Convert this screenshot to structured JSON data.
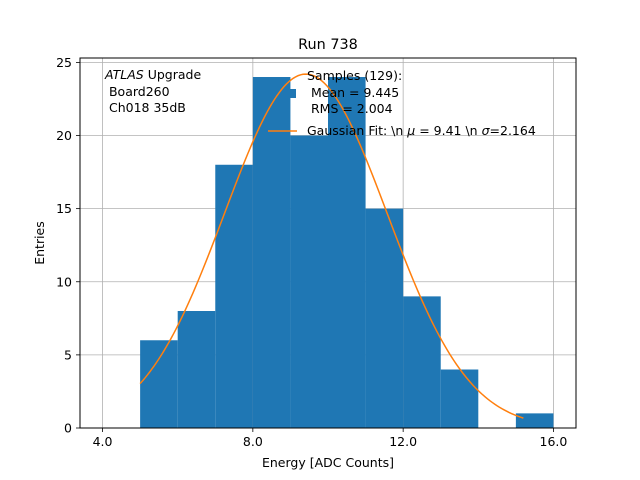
{
  "chart_data": {
    "type": "bar",
    "title": "Run 738",
    "xlabel": "Energy [ADC Counts]",
    "ylabel": "Entries",
    "xlim": [
      3.4,
      16.6
    ],
    "ylim": [
      0,
      25.3
    ],
    "grid": true,
    "xticks": [
      4.0,
      8.0,
      12.0,
      16.0
    ],
    "xtick_labels": [
      "4.0",
      "8.0",
      "12.0",
      "16.0"
    ],
    "yticks": [
      0,
      5,
      10,
      15,
      20,
      25
    ],
    "ytick_labels": [
      "0",
      "5",
      "10",
      "15",
      "20",
      "25"
    ],
    "bars": [
      {
        "x0": 5,
        "x1": 6,
        "value": 6
      },
      {
        "x0": 6,
        "x1": 7,
        "value": 8
      },
      {
        "x0": 7,
        "x1": 8,
        "value": 18
      },
      {
        "x0": 8,
        "x1": 9,
        "value": 24
      },
      {
        "x0": 9,
        "x1": 10,
        "value": 20
      },
      {
        "x0": 10,
        "x1": 11,
        "value": 24
      },
      {
        "x0": 11,
        "x1": 12,
        "value": 15
      },
      {
        "x0": 12,
        "x1": 13,
        "value": 9
      },
      {
        "x0": 13,
        "x1": 14,
        "value": 4
      },
      {
        "x0": 14,
        "x1": 15,
        "value": 0
      },
      {
        "x0": 15,
        "x1": 16,
        "value": 1
      }
    ],
    "fit": {
      "mu": 9.41,
      "sigma": 2.164,
      "amplitude": 24.2,
      "x_start": 5.0,
      "x_end": 15.2
    },
    "colors": {
      "bars": "#1f77b4",
      "fit": "#ff7f0e",
      "grid": "#b0b0b0"
    },
    "annotation": {
      "line1_italic": "ATLAS",
      "line1_rest": " Upgrade",
      "line2": " Board260",
      "line3": " Ch018 35dB"
    },
    "legend": {
      "placement": "top-right",
      "hist_label_line1": "Samples (129):",
      "hist_label_line2": " Mean = 9.445",
      "hist_label_line3": " RMS = 2.004",
      "fit_label_prefix": "Gaussian Fit: \\n ",
      "fit_label_mu_symbol": "μ",
      "fit_label_mid": " = 9.41 \\n ",
      "fit_label_sigma_symbol": "σ",
      "fit_label_suffix": "=2.164"
    }
  }
}
